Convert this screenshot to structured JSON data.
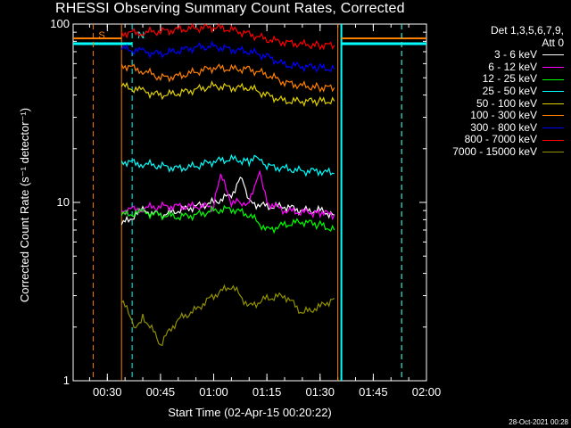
{
  "chart_data": {
    "type": "line",
    "title": "RHESSI Observing Summary Count Rates, Corrected",
    "xlabel": "Start Time (02-Apr-15 00:20:22)",
    "ylabel": "Corrected Count Rate (s⁻¹ detector⁻¹)",
    "y_scale": "log",
    "ylim": [
      1,
      100
    ],
    "xlim": [
      "00:20:22",
      "02:00:00"
    ],
    "x_ticks": [
      "00:30",
      "00:45",
      "01:00",
      "01:15",
      "01:30",
      "01:45",
      "02:00"
    ],
    "y_ticks": [
      "1",
      "10",
      "100"
    ],
    "grid": false,
    "legend_position": "top-right",
    "legend_header": [
      "Det 1,3,5,6,7,9,",
      "Att 0"
    ],
    "timestamp": "28-Oct-2021 00:28",
    "markers": [
      {
        "label": "S",
        "time": "00:26",
        "color": "#ff8000"
      },
      {
        "label": "N",
        "time": "00:37",
        "color": "#00ffff"
      }
    ],
    "series": [
      {
        "name": "3 - 6 keV",
        "color": "#ffffff",
        "x": [
          "00:34",
          "00:40",
          "00:45",
          "00:50",
          "00:55",
          "01:00",
          "01:05",
          "01:08",
          "01:10",
          "01:15",
          "01:20",
          "01:25",
          "01:30",
          "01:34"
        ],
        "y": [
          7.5,
          9.0,
          8.5,
          9.0,
          9.5,
          10,
          11,
          14,
          10,
          9.5,
          9.5,
          9.0,
          9.0,
          8.5
        ]
      },
      {
        "name": "6 - 12 keV",
        "color": "#ff00ff",
        "x": [
          "00:34",
          "00:40",
          "00:45",
          "00:50",
          "00:55",
          "01:00",
          "01:02",
          "01:05",
          "01:08",
          "01:10",
          "01:13",
          "01:15",
          "01:20",
          "01:25",
          "01:30",
          "01:34"
        ],
        "y": [
          9.0,
          9.3,
          9.5,
          9.5,
          9.5,
          9.5,
          14,
          10,
          10,
          10,
          15,
          10,
          9.0,
          8.8,
          8.8,
          8.5
        ]
      },
      {
        "name": "12 - 25 keV",
        "color": "#00ff00",
        "x": [
          "00:34",
          "00:40",
          "00:45",
          "00:50",
          "00:55",
          "01:00",
          "01:05",
          "01:10",
          "01:15",
          "01:20",
          "01:25",
          "01:30",
          "01:34"
        ],
        "y": [
          8.5,
          8.8,
          8.5,
          8.3,
          8.5,
          9.0,
          9.2,
          8.5,
          7.0,
          7.5,
          7.8,
          7.5,
          7.0
        ]
      },
      {
        "name": "25 - 50 keV",
        "color": "#00ffff",
        "x": [
          "00:34",
          "00:40",
          "00:45",
          "00:50",
          "00:55",
          "01:00",
          "01:05",
          "01:10",
          "01:13",
          "01:15",
          "01:20",
          "01:25",
          "01:30",
          "01:34"
        ],
        "y": [
          17,
          16.5,
          16,
          15.5,
          16,
          17,
          17.5,
          17,
          18,
          16,
          15.5,
          15,
          15,
          14.5
        ]
      },
      {
        "name": "50 - 100 keV",
        "color": "#e0d000",
        "x": [
          "00:34",
          "00:40",
          "00:45",
          "00:50",
          "00:55",
          "01:00",
          "01:05",
          "01:10",
          "01:15",
          "01:20",
          "01:25",
          "01:30",
          "01:34"
        ],
        "y": [
          45,
          42,
          40,
          41,
          43,
          45,
          44,
          44,
          40,
          37,
          37,
          37,
          37
        ]
      },
      {
        "name": "100 - 300 keV",
        "color": "#ff8000",
        "x": [
          "00:34",
          "00:40",
          "00:45",
          "00:50",
          "00:55",
          "01:00",
          "01:05",
          "01:10",
          "01:15",
          "01:20",
          "01:25",
          "01:30",
          "01:34"
        ],
        "y": [
          59,
          55,
          50,
          51,
          54,
          57,
          56,
          56,
          52,
          47,
          45,
          44,
          44
        ]
      },
      {
        "name": "300 - 800 keV",
        "color": "#0000ff",
        "x": [
          "00:34",
          "00:40",
          "00:45",
          "00:50",
          "00:55",
          "01:00",
          "01:05",
          "01:10",
          "01:15",
          "01:20",
          "01:25",
          "01:30",
          "01:34"
        ],
        "y": [
          73,
          70,
          68,
          71,
          74,
          75,
          72,
          70,
          66,
          59,
          58,
          57,
          56
        ]
      },
      {
        "name": "800 - 7000 keV",
        "color": "#ff0000",
        "x": [
          "00:34",
          "00:40",
          "00:45",
          "00:50",
          "00:55",
          "01:00",
          "01:05",
          "01:10",
          "01:15",
          "01:20",
          "01:25",
          "01:30",
          "01:34"
        ],
        "y": [
          89,
          90,
          91,
          93,
          95,
          96,
          93,
          88,
          82,
          79,
          77,
          76,
          76
        ]
      },
      {
        "name": "7000 - 15000 keV",
        "color": "#909000",
        "x": [
          "00:34",
          "00:38",
          "00:40",
          "00:45",
          "00:50",
          "00:55",
          "01:00",
          "01:05",
          "01:10",
          "01:15",
          "01:20",
          "01:25",
          "01:30",
          "01:34"
        ],
        "y": [
          2.8,
          2.0,
          2.3,
          1.6,
          2.2,
          2.5,
          3.0,
          3.4,
          2.6,
          2.9,
          3.0,
          2.4,
          2.6,
          2.9
        ]
      }
    ]
  }
}
